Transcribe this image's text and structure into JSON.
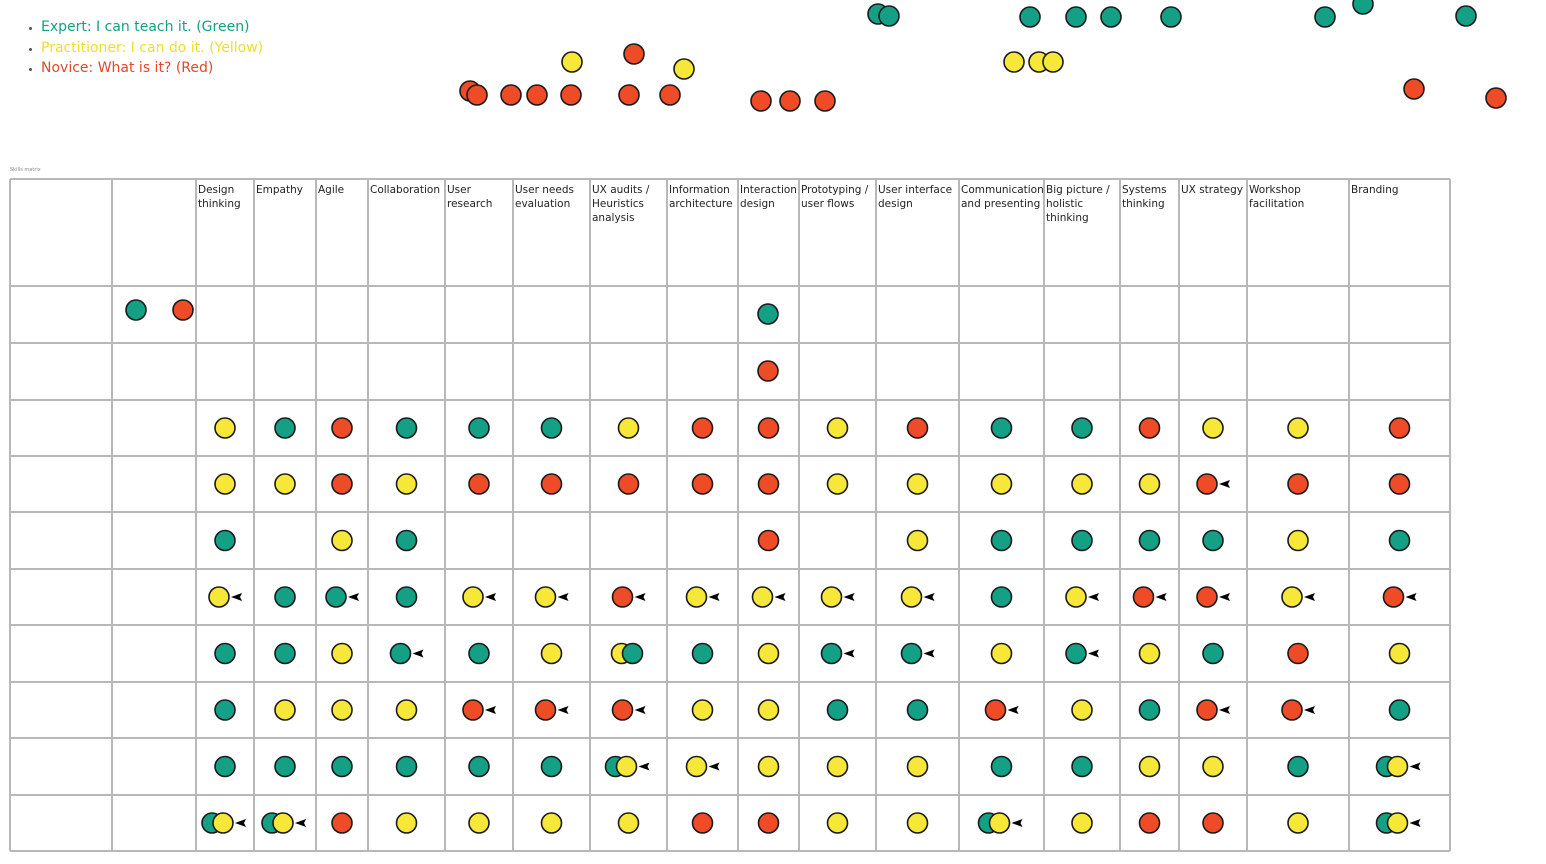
{
  "legend": [
    "Expert: I can teach it. (Green)",
    "Practitioner: I can do it. (Yellow)",
    "Novice: What is it? (Red)"
  ],
  "matrix": {
    "title": "Skills matrix",
    "columns": [
      "Design thinking",
      "Empathy",
      "Agile",
      "Collaboration",
      "User research",
      "User needs evaluation",
      "UX audits / Heuristics analysis",
      "Information architecture",
      "Interaction design",
      "Prototyping / user flows",
      "User interface design",
      "Communication and presenting",
      "Big picture / holistic thinking",
      "Systems thinking",
      "UX strategy",
      "Workshop facilitation",
      "Branding"
    ]
  }
}
